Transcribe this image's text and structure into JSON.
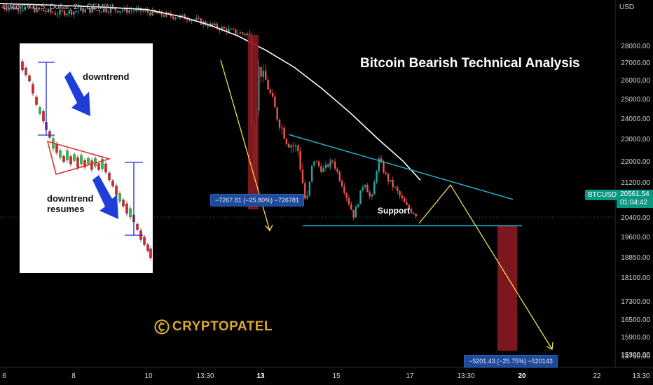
{
  "header": {
    "symbol": "Bitcoin / U.S. Dollar, 2h, GEMINI",
    "currency": "USD"
  },
  "title": "Bitcoin Bearish Technical Analysis",
  "annotations": {
    "support": "Support",
    "measure_drop_1": "−7267.81 (−25.80%) −726781",
    "measure_drop_2": "−5201.43 (−25.75%) −520143",
    "logo": "CRYPTOPATEL"
  },
  "inset": {
    "label_downtrend": "downtrend",
    "label_resumes": "downtrend resumes"
  },
  "price_badge": {
    "ticker": "BTCUSD",
    "price": "20561.54",
    "countdown": "01:04:42"
  },
  "colors": {
    "background": "#000000",
    "up_candle": "#26a69a",
    "down_candle": "#ef5350",
    "moving_average": "#ffffff",
    "trendline": "#29b6d6",
    "projection": "#f4e04d",
    "measure_box": "#8b1a22",
    "badge": "#089981",
    "logo": "#d9a82c"
  },
  "chart_data": {
    "type": "candlestick",
    "title": "Bitcoin Bearish Technical Analysis",
    "y_unit": "USD",
    "ylim": [
      14300,
      29600
    ],
    "y_ticks": [
      "28000.00",
      "27000.00",
      "26000.00",
      "25000.00",
      "24000.00",
      "23000.00",
      "22000.00",
      "21200.00",
      "20400.00",
      "19600.00",
      "18850.00",
      "18100.00",
      "17300.00",
      "16500.00",
      "15900.00",
      "15300.00",
      "14750.00"
    ],
    "x_ticks": [
      {
        "label": "6",
        "bold": false
      },
      {
        "label": "8",
        "bold": false
      },
      {
        "label": "10",
        "bold": false
      },
      {
        "label": "13:30",
        "bold": false
      },
      {
        "label": "13",
        "bold": true
      },
      {
        "label": "15",
        "bold": false
      },
      {
        "label": "17",
        "bold": false
      },
      {
        "label": "13:30",
        "bold": false
      },
      {
        "label": "20",
        "bold": true
      },
      {
        "label": "22",
        "bold": false
      },
      {
        "label": "13:30",
        "bold": false
      }
    ],
    "last_price": 20561.54,
    "support_level": 20200,
    "descending_resistance": {
      "start": 24000,
      "end": 21300
    },
    "measured_moves": [
      {
        "from": 28150,
        "to": 20880,
        "change": -7267.81,
        "percent": -25.8
      },
      {
        "from": 20200,
        "to": 15000,
        "change": -5201.43,
        "percent": -25.75
      }
    ],
    "projection_path": [
      20300,
      21900,
      15000
    ]
  }
}
